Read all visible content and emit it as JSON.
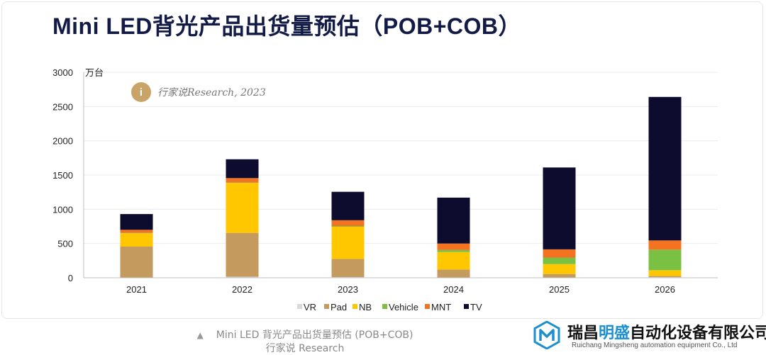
{
  "title": "Mini LED背光产品出货量预估（POB+COB）",
  "unit_label": "万台",
  "watermark": {
    "glyph": "i",
    "text": "行家说Research, 2023"
  },
  "caption": {
    "marker": "▲",
    "line1": "Mini LED 背光产品出货量预估 (POB+COB)",
    "line2": "行家说 Research"
  },
  "company": {
    "name_pre": "瑞昌",
    "name_hl": "明盛",
    "name_post": "自动化设备有限公司",
    "name_en": "Ruichang Mingsheng automation equipment Co., Ltd",
    "logo_icon": "hexagon-m-logo-icon",
    "logo_color": "#1b8fd0"
  },
  "chart_data": {
    "type": "bar",
    "stacked": true,
    "categories": [
      "2021",
      "2022",
      "2023",
      "2024",
      "2025",
      "2026"
    ],
    "series": [
      {
        "name": "VR",
        "color": "#d9d9d9",
        "values": [
          5,
          15,
          10,
          5,
          5,
          10
        ]
      },
      {
        "name": "Pad",
        "color": "#c59a5e",
        "values": [
          450,
          640,
          265,
          115,
          50,
          15
        ]
      },
      {
        "name": "NB",
        "color": "#ffc700",
        "values": [
          195,
          730,
          470,
          255,
          145,
          85
        ]
      },
      {
        "name": "Vehicle",
        "color": "#7ac143",
        "values": [
          5,
          5,
          10,
          30,
          95,
          300
        ]
      },
      {
        "name": "MNT",
        "color": "#f47320",
        "values": [
          45,
          65,
          85,
          95,
          120,
          135
        ]
      },
      {
        "name": "TV",
        "color": "#0d0b2e",
        "values": [
          230,
          275,
          415,
          670,
          1195,
          2095
        ]
      }
    ],
    "ylim": [
      0,
      3000
    ],
    "yticks": [
      0,
      500,
      1000,
      1500,
      2000,
      2500,
      3000
    ],
    "ylabel": "万台",
    "grid": true,
    "legend": "bottom"
  }
}
